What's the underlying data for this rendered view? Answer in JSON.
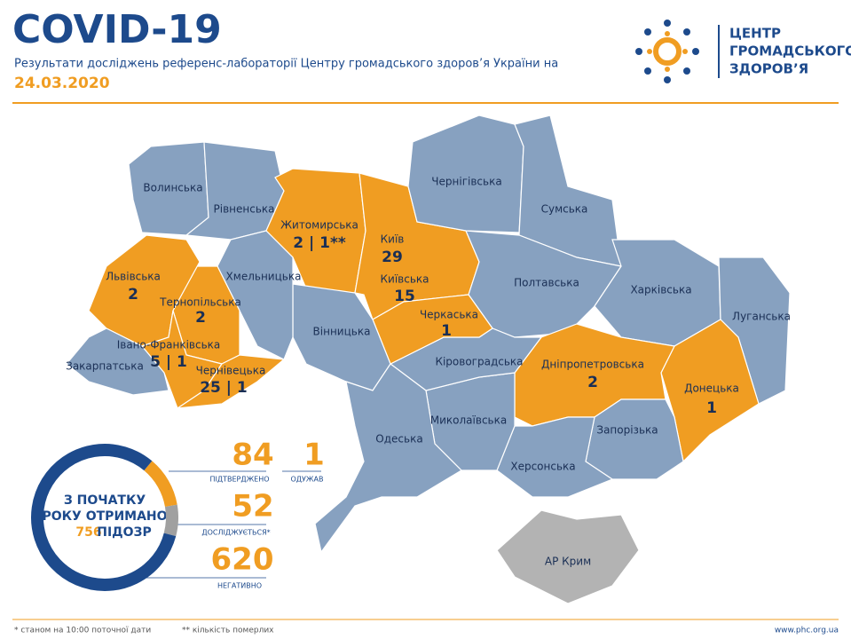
{
  "header": {
    "title": "COVID-19",
    "subtitle": "Результати досліджень референс-лабораторії Центру громадського здоров’я України на",
    "date": "24.03.2020",
    "logo": [
      "ЦЕНТР",
      "ГРОМАДСЬКОГО",
      "ЗДОРОВ’Я"
    ]
  },
  "regions": [
    {
      "name": "Волинська",
      "color": "#87a1c0"
    },
    {
      "name": "Рівненська",
      "color": "#87a1c0"
    },
    {
      "name": "Житомирська",
      "value": "2 | 1**",
      "color": "#f09d22"
    },
    {
      "name": "Київ",
      "value": 29,
      "color": "#f09d22"
    },
    {
      "name": "Київська",
      "value": 15,
      "color": "#f09d22"
    },
    {
      "name": "Чернігівська",
      "color": "#87a1c0"
    },
    {
      "name": "Сумська",
      "color": "#87a1c0"
    },
    {
      "name": "Полтавська",
      "color": "#87a1c0"
    },
    {
      "name": "Харківська",
      "color": "#87a1c0"
    },
    {
      "name": "Луганська",
      "color": "#87a1c0"
    },
    {
      "name": "Донецька",
      "value": 1,
      "color": "#f09d22"
    },
    {
      "name": "Дніпропетровська",
      "value": 2,
      "color": "#f09d22"
    },
    {
      "name": "Запорізька",
      "color": "#87a1c0"
    },
    {
      "name": "Херсонська",
      "color": "#87a1c0"
    },
    {
      "name": "Миколаївська",
      "color": "#87a1c0"
    },
    {
      "name": "Кіровоградська",
      "color": "#87a1c0"
    },
    {
      "name": "Черкаська",
      "value": 1,
      "color": "#f09d22"
    },
    {
      "name": "Вінницька",
      "color": "#87a1c0"
    },
    {
      "name": "Одеська",
      "color": "#87a1c0"
    },
    {
      "name": "Хмельницька",
      "color": "#87a1c0"
    },
    {
      "name": "Тернопільська",
      "value": 2,
      "color": "#f09d22"
    },
    {
      "name": "Львівська",
      "value": 2,
      "color": "#f09d22"
    },
    {
      "name": "Івано-Франківська",
      "value": "5 | 1",
      "color": "#f09d22"
    },
    {
      "name": "Чернівецька",
      "value": "25 | 1",
      "color": "#f09d22"
    },
    {
      "name": "Закарпатська",
      "color": "#87a1c0"
    },
    {
      "name": "АР Крим",
      "color": "#b3b3b3"
    }
  ],
  "summary": {
    "center": [
      "З ПОЧАТКУ",
      "РОКУ ОТРИМАНО"
    ],
    "total": 756,
    "total_label": "ПІДОЗР",
    "confirmed": {
      "value": 84,
      "label": "ПІДТВЕРДЖЕНО",
      "color": "#f09d22"
    },
    "recovered": {
      "value": 1,
      "label": "ОДУЖАВ"
    },
    "investigating": {
      "value": 52,
      "label": "ДОСЛІДЖУЄТЬСЯ*",
      "color": "#a0a0a0"
    },
    "negative": {
      "value": 620,
      "label": "НЕГАТИВНО",
      "color": "#1d4a8c"
    }
  },
  "footer": {
    "note1": "* станом на 10:00 поточної дати",
    "note2": "** кількість померлих",
    "url": "www.phc.org.ua"
  }
}
